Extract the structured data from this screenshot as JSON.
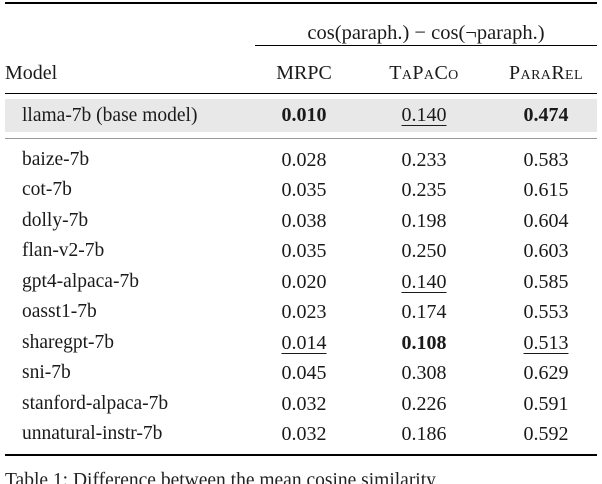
{
  "table": {
    "group_header": "cos(paraph.) − cos(¬paraph.)",
    "columns": [
      "Model",
      "MRPC",
      "TaPaCo",
      "ParaRel"
    ],
    "rows": [
      {
        "model": "llama-7b (base model)",
        "highlight": true,
        "rule_after": true,
        "values": [
          {
            "v": "0.010",
            "s": "bold"
          },
          {
            "v": "0.140",
            "s": "underline"
          },
          {
            "v": "0.474",
            "s": "bold"
          }
        ]
      },
      {
        "model": "baize-7b",
        "values": [
          {
            "v": "0.028",
            "s": "plain"
          },
          {
            "v": "0.233",
            "s": "plain"
          },
          {
            "v": "0.583",
            "s": "plain"
          }
        ]
      },
      {
        "model": "cot-7b",
        "values": [
          {
            "v": "0.035",
            "s": "plain"
          },
          {
            "v": "0.235",
            "s": "plain"
          },
          {
            "v": "0.615",
            "s": "plain"
          }
        ]
      },
      {
        "model": "dolly-7b",
        "values": [
          {
            "v": "0.038",
            "s": "plain"
          },
          {
            "v": "0.198",
            "s": "plain"
          },
          {
            "v": "0.604",
            "s": "plain"
          }
        ]
      },
      {
        "model": "flan-v2-7b",
        "values": [
          {
            "v": "0.035",
            "s": "plain"
          },
          {
            "v": "0.250",
            "s": "plain"
          },
          {
            "v": "0.603",
            "s": "plain"
          }
        ]
      },
      {
        "model": "gpt4-alpaca-7b",
        "values": [
          {
            "v": "0.020",
            "s": "plain"
          },
          {
            "v": "0.140",
            "s": "underline"
          },
          {
            "v": "0.585",
            "s": "plain"
          }
        ]
      },
      {
        "model": "oasst1-7b",
        "values": [
          {
            "v": "0.023",
            "s": "plain"
          },
          {
            "v": "0.174",
            "s": "plain"
          },
          {
            "v": "0.553",
            "s": "plain"
          }
        ]
      },
      {
        "model": "sharegpt-7b",
        "values": [
          {
            "v": "0.014",
            "s": "underline"
          },
          {
            "v": "0.108",
            "s": "bold"
          },
          {
            "v": "0.513",
            "s": "underline"
          }
        ]
      },
      {
        "model": "sni-7b",
        "values": [
          {
            "v": "0.045",
            "s": "plain"
          },
          {
            "v": "0.308",
            "s": "plain"
          },
          {
            "v": "0.629",
            "s": "plain"
          }
        ]
      },
      {
        "model": "stanford-alpaca-7b",
        "values": [
          {
            "v": "0.032",
            "s": "plain"
          },
          {
            "v": "0.226",
            "s": "plain"
          },
          {
            "v": "0.591",
            "s": "plain"
          }
        ]
      },
      {
        "model": "unnatural-instr-7b",
        "values": [
          {
            "v": "0.032",
            "s": "plain"
          },
          {
            "v": "0.186",
            "s": "plain"
          },
          {
            "v": "0.592",
            "s": "plain"
          }
        ]
      }
    ]
  },
  "caption_clipped": "Table 1: Difference between the mean cosine similarity",
  "colors": {
    "highlight_row_bg": "#e8e8e8",
    "rule": "#000000",
    "thin_rule": "#999999",
    "text": "#1a1a1a"
  }
}
